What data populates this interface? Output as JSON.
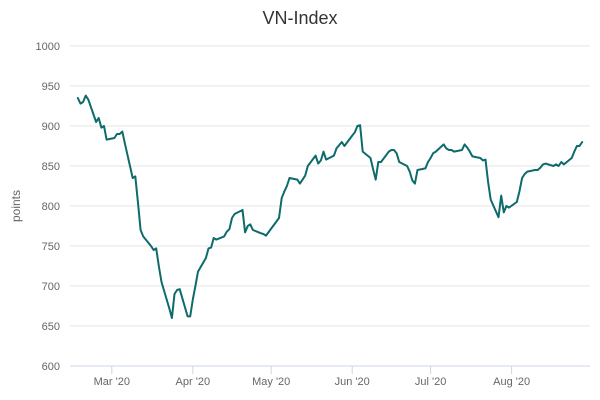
{
  "chart_data": {
    "type": "line",
    "title": "VN-Index",
    "xlabel": "",
    "ylabel": "points",
    "ylim": [
      600,
      1000
    ],
    "y_ticks": [
      600,
      650,
      700,
      750,
      800,
      850,
      900,
      950,
      1000
    ],
    "x_ticks": [
      {
        "date": "2020-03-01",
        "label": "Mar '20"
      },
      {
        "date": "2020-04-01",
        "label": "Apr '20"
      },
      {
        "date": "2020-05-01",
        "label": "May '20"
      },
      {
        "date": "2020-06-01",
        "label": "Jun '20"
      },
      {
        "date": "2020-07-01",
        "label": "Jul '20"
      },
      {
        "date": "2020-08-01",
        "label": "Aug '20"
      }
    ],
    "xlim": [
      "2020-02-14",
      "2020-08-31"
    ],
    "grid": true,
    "colors": {
      "series": "#0d6b6b"
    },
    "series": [
      {
        "x": [
          "2020-02-17",
          "2020-02-18",
          "2020-02-19",
          "2020-02-20",
          "2020-02-21",
          "2020-02-24",
          "2020-02-25",
          "2020-02-26",
          "2020-02-27",
          "2020-02-28",
          "2020-03-02",
          "2020-03-03",
          "2020-03-04",
          "2020-03-05",
          "2020-03-06",
          "2020-03-09",
          "2020-03-10",
          "2020-03-11",
          "2020-03-12",
          "2020-03-13",
          "2020-03-16",
          "2020-03-17",
          "2020-03-18",
          "2020-03-19",
          "2020-03-20",
          "2020-03-23",
          "2020-03-24",
          "2020-03-25",
          "2020-03-26",
          "2020-03-27",
          "2020-03-30",
          "2020-03-31",
          "2020-04-01",
          "2020-04-02",
          "2020-04-03",
          "2020-04-06",
          "2020-04-07",
          "2020-04-08",
          "2020-04-09",
          "2020-04-10",
          "2020-04-13",
          "2020-04-14",
          "2020-04-15",
          "2020-04-16",
          "2020-04-17",
          "2020-04-20",
          "2020-04-21",
          "2020-04-22",
          "2020-04-23",
          "2020-04-24",
          "2020-04-27",
          "2020-04-28",
          "2020-04-29",
          "2020-05-04",
          "2020-05-05",
          "2020-05-06",
          "2020-05-07",
          "2020-05-08",
          "2020-05-11",
          "2020-05-12",
          "2020-05-13",
          "2020-05-14",
          "2020-05-15",
          "2020-05-18",
          "2020-05-19",
          "2020-05-20",
          "2020-05-21",
          "2020-05-22",
          "2020-05-25",
          "2020-05-26",
          "2020-05-27",
          "2020-05-28",
          "2020-05-29",
          "2020-06-01",
          "2020-06-02",
          "2020-06-03",
          "2020-06-04",
          "2020-06-05",
          "2020-06-08",
          "2020-06-09",
          "2020-06-10",
          "2020-06-11",
          "2020-06-12",
          "2020-06-15",
          "2020-06-16",
          "2020-06-17",
          "2020-06-18",
          "2020-06-19",
          "2020-06-22",
          "2020-06-23",
          "2020-06-24",
          "2020-06-25",
          "2020-06-26",
          "2020-06-29",
          "2020-06-30",
          "2020-07-01",
          "2020-07-02",
          "2020-07-03",
          "2020-07-06",
          "2020-07-07",
          "2020-07-08",
          "2020-07-09",
          "2020-07-10",
          "2020-07-13",
          "2020-07-14",
          "2020-07-15",
          "2020-07-16",
          "2020-07-17",
          "2020-07-20",
          "2020-07-21",
          "2020-07-22",
          "2020-07-23",
          "2020-07-24",
          "2020-07-27",
          "2020-07-28",
          "2020-07-29",
          "2020-07-30",
          "2020-07-31",
          "2020-08-03",
          "2020-08-04",
          "2020-08-05",
          "2020-08-06",
          "2020-08-07",
          "2020-08-10",
          "2020-08-11",
          "2020-08-12",
          "2020-08-13",
          "2020-08-14",
          "2020-08-17",
          "2020-08-18",
          "2020-08-19",
          "2020-08-20",
          "2020-08-21",
          "2020-08-24",
          "2020-08-25",
          "2020-08-26",
          "2020-08-27",
          "2020-08-28"
        ],
        "y": [
          935,
          928,
          930,
          938,
          933,
          905,
          910,
          898,
          900,
          883,
          885,
          890,
          890,
          893,
          878,
          835,
          837,
          805,
          770,
          762,
          750,
          745,
          747,
          725,
          705,
          672,
          660,
          690,
          695,
          696,
          662,
          662,
          683,
          700,
          718,
          735,
          747,
          748,
          760,
          758,
          762,
          768,
          771,
          785,
          790,
          795,
          767,
          775,
          777,
          770,
          766,
          765,
          763,
          785,
          810,
          818,
          825,
          835,
          833,
          828,
          833,
          838,
          850,
          863,
          853,
          857,
          868,
          858,
          863,
          872,
          876,
          880,
          875,
          888,
          892,
          900,
          901,
          868,
          860,
          846,
          833,
          855,
          855,
          868,
          870,
          870,
          866,
          855,
          850,
          843,
          832,
          828,
          845,
          847,
          855,
          860,
          866,
          868,
          877,
          872,
          870,
          870,
          868,
          870,
          877,
          873,
          868,
          862,
          860,
          857,
          858,
          830,
          808,
          786,
          813,
          792,
          800,
          798,
          805,
          818,
          835,
          840,
          843,
          845,
          845,
          848,
          852,
          853,
          850,
          852,
          850,
          855,
          852,
          860,
          868,
          875,
          875,
          880
        ]
      }
    ]
  }
}
